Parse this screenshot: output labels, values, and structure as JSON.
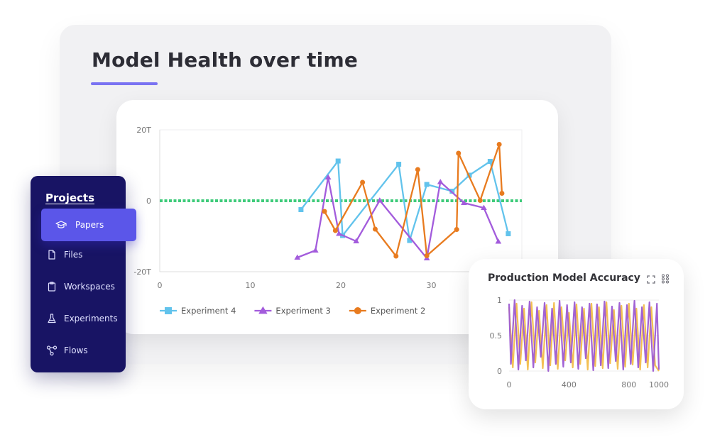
{
  "page": {
    "title": "Model Health over time",
    "accent": "#7a73f2"
  },
  "sidebar": {
    "title": "Projects",
    "items": [
      {
        "label": "Papers",
        "icon": "graduation-cap-icon",
        "active": true
      },
      {
        "label": "Files",
        "icon": "file-icon"
      },
      {
        "label": "Workspaces",
        "icon": "clipboard-icon"
      },
      {
        "label": "Experiments",
        "icon": "flask-icon"
      },
      {
        "label": "Flows",
        "icon": "flow-icon"
      }
    ]
  },
  "chart_data": [
    {
      "type": "line",
      "title": "",
      "xlabel": "",
      "ylabel": "",
      "xlim": [
        0,
        40
      ],
      "ylim": [
        -20,
        20
      ],
      "x_ticks": [
        "0",
        "10",
        "20",
        "30"
      ],
      "y_ticks": [
        "20T",
        "0",
        "-20T"
      ],
      "y_tick_values": [
        20,
        0,
        -20
      ],
      "x_tick_values": [
        0,
        10,
        20,
        30
      ],
      "legend_position": "bottom-left",
      "reference_line": {
        "y": 0,
        "color": "#3ecb7a",
        "style": "dotted"
      },
      "series": [
        {
          "name": "Experiment 4",
          "color": "#62c3ec",
          "marker": "square",
          "points": [
            [
              15.6,
              -2.5
            ],
            [
              19.7,
              11.2
            ],
            [
              20.2,
              -9.8
            ],
            [
              26.4,
              10.3
            ],
            [
              27.6,
              -11.2
            ],
            [
              29.5,
              4.6
            ],
            [
              32.3,
              2.7
            ],
            [
              34.2,
              7.2
            ],
            [
              36.5,
              11.1
            ],
            [
              38.5,
              -9.3
            ]
          ]
        },
        {
          "name": "Experiment 3",
          "color": "#a35cdc",
          "marker": "triangle",
          "points": [
            [
              15.2,
              -16.0
            ],
            [
              17.2,
              -14.0
            ],
            [
              18.6,
              6.6
            ],
            [
              19.8,
              -9.3
            ],
            [
              21.7,
              -11.4
            ],
            [
              24.3,
              0.1
            ],
            [
              29.5,
              -16.2
            ],
            [
              31.0,
              5.3
            ],
            [
              33.6,
              -0.6
            ],
            [
              35.8,
              -2.0
            ],
            [
              37.4,
              -11.5
            ]
          ]
        },
        {
          "name": "Experiment 2",
          "color": "#e87b1f",
          "marker": "circle",
          "points": [
            [
              18.2,
              -3.0
            ],
            [
              19.4,
              -8.4
            ],
            [
              22.4,
              5.2
            ],
            [
              23.8,
              -8.0
            ],
            [
              26.1,
              -15.6
            ],
            [
              28.5,
              8.8
            ],
            [
              29.5,
              -15.5
            ],
            [
              32.8,
              -8.1
            ],
            [
              33.0,
              13.4
            ],
            [
              35.4,
              0.1
            ],
            [
              37.5,
              15.9
            ],
            [
              37.8,
              2.1
            ]
          ]
        }
      ]
    },
    {
      "type": "line",
      "title": "Production Model Accuracy",
      "xlim": [
        0,
        1000
      ],
      "ylim": [
        0,
        1
      ],
      "x_ticks": [
        "0",
        "400",
        "800",
        "1000"
      ],
      "x_tick_values": [
        0,
        400,
        800,
        1000
      ],
      "y_ticks": [
        "1",
        "0.5",
        "0"
      ],
      "y_tick_values": [
        1,
        0.5,
        0
      ],
      "grid": true,
      "series": [
        {
          "color": "#f2bd4b",
          "x": [
            0,
            25,
            50,
            75,
            100,
            125,
            150,
            175,
            200,
            225,
            250,
            275,
            300,
            325,
            350,
            375,
            400,
            425,
            450,
            475,
            500,
            525,
            550,
            575,
            600,
            625,
            650,
            675,
            700,
            725,
            750,
            775,
            800,
            825,
            850,
            875,
            900,
            925,
            950,
            975,
            1000
          ],
          "values": [
            0.9,
            0.05,
            0.95,
            0.1,
            0.88,
            0.02,
            0.97,
            0.12,
            0.85,
            0.04,
            0.93,
            0.08,
            0.96,
            0.03,
            0.9,
            0.15,
            0.82,
            0.05,
            0.94,
            0.1,
            0.88,
            0.02,
            0.95,
            0.07,
            0.9,
            0.04,
            0.97,
            0.11,
            0.86,
            0.03,
            0.92,
            0.06,
            0.95,
            0.09,
            0.88,
            0.02,
            0.93,
            0.05,
            0.9,
            0.08,
            0.0
          ]
        },
        {
          "color": "#9d5bd2",
          "x": [
            0,
            12,
            37,
            62,
            87,
            112,
            137,
            162,
            187,
            212,
            237,
            262,
            287,
            312,
            337,
            362,
            387,
            412,
            437,
            462,
            487,
            512,
            537,
            562,
            587,
            612,
            637,
            662,
            687,
            712,
            737,
            762,
            787,
            812,
            837,
            862,
            887,
            912,
            937,
            962,
            987,
            1000
          ],
          "values": [
            0.95,
            0.1,
            1.0,
            0.02,
            0.92,
            0.15,
            0.98,
            0.05,
            0.9,
            0.2,
            0.96,
            0.0,
            0.88,
            0.1,
            0.99,
            0.06,
            0.93,
            0.12,
            0.97,
            0.03,
            0.9,
            0.18,
            0.95,
            0.01,
            0.94,
            0.08,
            0.98,
            0.04,
            0.91,
            0.14,
            0.96,
            0.02,
            0.93,
            0.1,
            0.99,
            0.05,
            0.9,
            0.12,
            0.97,
            0.0,
            0.95,
            0.02
          ]
        }
      ]
    }
  ]
}
